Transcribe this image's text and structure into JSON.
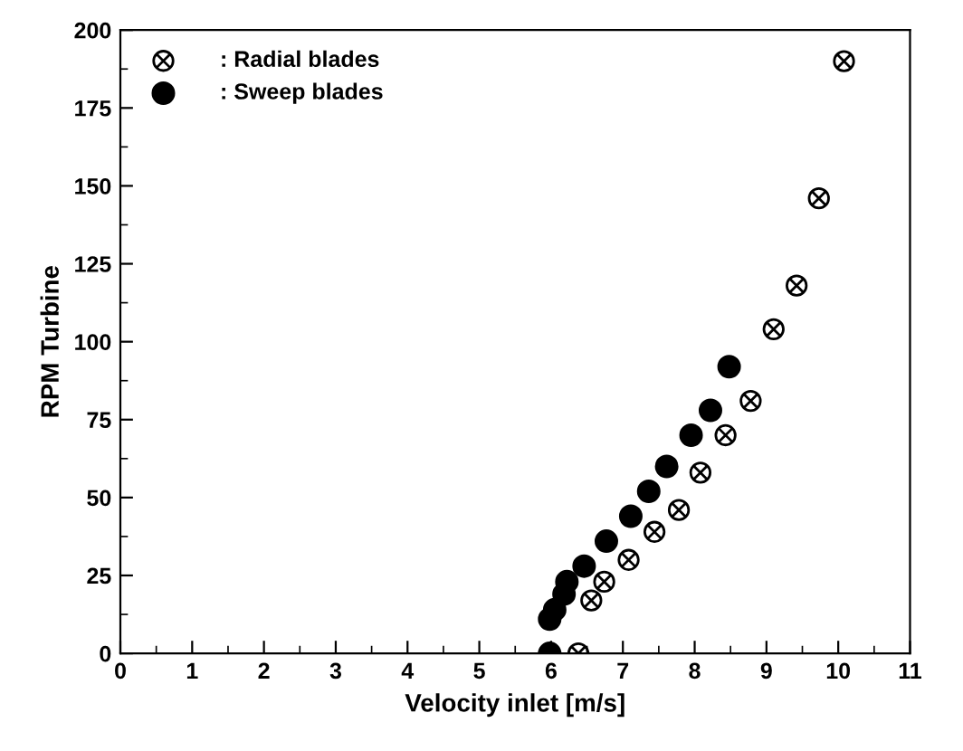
{
  "chart_data": {
    "type": "scatter",
    "xlabel": "Velocity inlet [m/s]",
    "ylabel": "RPM Turbine",
    "xlim": [
      0,
      11
    ],
    "xticks": [
      0,
      1,
      2,
      3,
      4,
      5,
      6,
      7,
      8,
      9,
      10,
      11
    ],
    "ylim": [
      0,
      200
    ],
    "yticks": [
      0,
      25,
      50,
      75,
      100,
      125,
      150,
      175,
      200
    ],
    "grid": false,
    "legend": "top left",
    "series": [
      {
        "name": ": Radial blades",
        "color": "#000000",
        "marker": "cross",
        "x": [
          6.38,
          6.56,
          6.74,
          7.08,
          7.44,
          7.78,
          8.08,
          8.43,
          8.78,
          9.1,
          9.42,
          9.73,
          10.08
        ],
        "values": [
          0,
          17,
          23,
          30,
          39,
          46,
          58,
          70,
          81,
          104,
          118,
          146,
          190
        ]
      },
      {
        "name": ": Sweep blades",
        "color": "#000000",
        "marker": "circle",
        "x": [
          5.98,
          5.98,
          6.05,
          6.18,
          6.22,
          6.46,
          6.77,
          7.11,
          7.36,
          7.61,
          7.95,
          8.22,
          8.48
        ],
        "values": [
          0,
          11,
          14,
          19,
          23,
          28,
          36,
          44,
          52,
          60,
          70,
          78,
          92
        ]
      }
    ]
  }
}
